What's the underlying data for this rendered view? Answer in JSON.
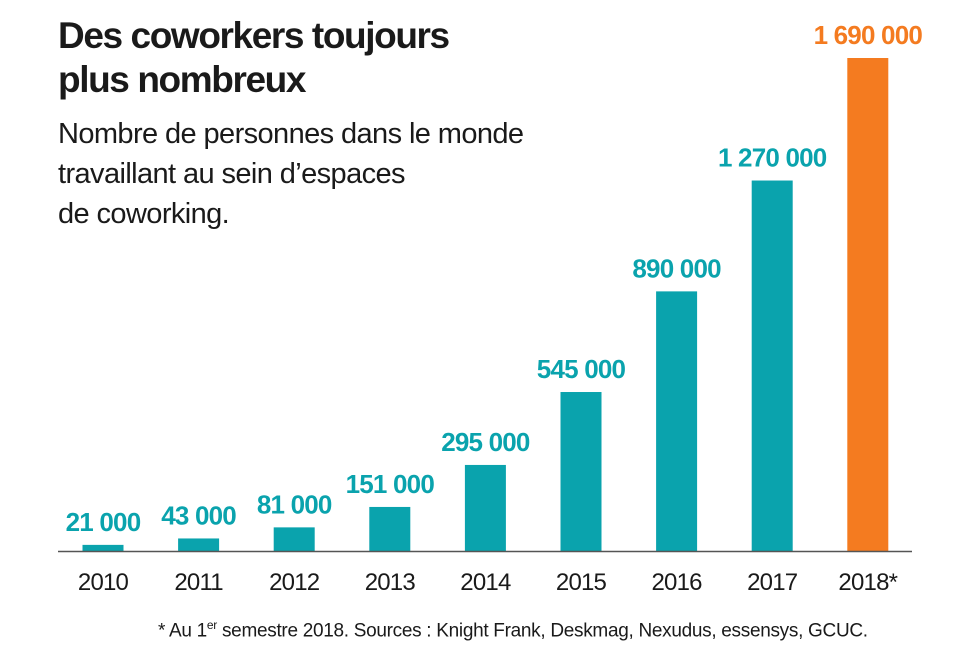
{
  "chart_data": {
    "type": "bar",
    "title_lines": [
      "Des coworkers toujours",
      "plus nombreux"
    ],
    "subtitle_lines": [
      "Nombre de personnes dans le monde",
      "travaillant au sein d’espaces",
      "de coworking."
    ],
    "categories": [
      "2010",
      "2011",
      "2012",
      "2013",
      "2014",
      "2015",
      "2016",
      "2017",
      "2018*"
    ],
    "values": [
      21000,
      43000,
      81000,
      151000,
      295000,
      545000,
      890000,
      1270000,
      1690000
    ],
    "value_labels": [
      "21 000",
      "43 000",
      "81 000",
      "151 000",
      "295 000",
      "545 000",
      "890 000",
      "1 270 000",
      "1 690 000"
    ],
    "ylim": [
      0,
      1690000
    ],
    "grid": false,
    "colors": {
      "bar": "#0aa3ad",
      "highlight_bar": "#f47b20",
      "baseline": "#555555",
      "text": "#1a1a1a"
    },
    "highlight_index": 8
  },
  "footnote": {
    "prefix": "* Au 1",
    "superscript": "er",
    "suffix": " semestre 2018. Sources : Knight Frank, Deskmag, Nexudus, essensys, GCUC."
  }
}
